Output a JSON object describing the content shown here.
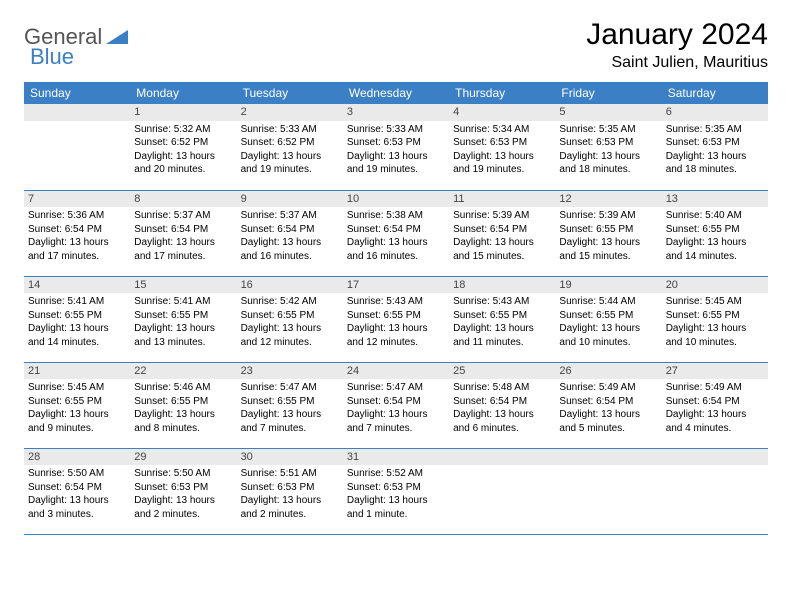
{
  "brand": {
    "part1": "General",
    "part2": "Blue"
  },
  "title": "January 2024",
  "location": "Saint Julien, Mauritius",
  "colors": {
    "header_bg": "#3b7fc4",
    "header_text": "#ffffff",
    "daynum_bg": "#eaeaea",
    "border": "#3b7fc4",
    "page_bg": "#ffffff",
    "text": "#000000",
    "logo_gray": "#555555",
    "logo_blue": "#3b7fc4"
  },
  "dayNames": [
    "Sunday",
    "Monday",
    "Tuesday",
    "Wednesday",
    "Thursday",
    "Friday",
    "Saturday"
  ],
  "weeks": [
    [
      {
        "n": "",
        "sr": "",
        "ss": "",
        "dl": ""
      },
      {
        "n": "1",
        "sr": "5:32 AM",
        "ss": "6:52 PM",
        "dl": "13 hours and 20 minutes."
      },
      {
        "n": "2",
        "sr": "5:33 AM",
        "ss": "6:52 PM",
        "dl": "13 hours and 19 minutes."
      },
      {
        "n": "3",
        "sr": "5:33 AM",
        "ss": "6:53 PM",
        "dl": "13 hours and 19 minutes."
      },
      {
        "n": "4",
        "sr": "5:34 AM",
        "ss": "6:53 PM",
        "dl": "13 hours and 19 minutes."
      },
      {
        "n": "5",
        "sr": "5:35 AM",
        "ss": "6:53 PM",
        "dl": "13 hours and 18 minutes."
      },
      {
        "n": "6",
        "sr": "5:35 AM",
        "ss": "6:53 PM",
        "dl": "13 hours and 18 minutes."
      }
    ],
    [
      {
        "n": "7",
        "sr": "5:36 AM",
        "ss": "6:54 PM",
        "dl": "13 hours and 17 minutes."
      },
      {
        "n": "8",
        "sr": "5:37 AM",
        "ss": "6:54 PM",
        "dl": "13 hours and 17 minutes."
      },
      {
        "n": "9",
        "sr": "5:37 AM",
        "ss": "6:54 PM",
        "dl": "13 hours and 16 minutes."
      },
      {
        "n": "10",
        "sr": "5:38 AM",
        "ss": "6:54 PM",
        "dl": "13 hours and 16 minutes."
      },
      {
        "n": "11",
        "sr": "5:39 AM",
        "ss": "6:54 PM",
        "dl": "13 hours and 15 minutes."
      },
      {
        "n": "12",
        "sr": "5:39 AM",
        "ss": "6:55 PM",
        "dl": "13 hours and 15 minutes."
      },
      {
        "n": "13",
        "sr": "5:40 AM",
        "ss": "6:55 PM",
        "dl": "13 hours and 14 minutes."
      }
    ],
    [
      {
        "n": "14",
        "sr": "5:41 AM",
        "ss": "6:55 PM",
        "dl": "13 hours and 14 minutes."
      },
      {
        "n": "15",
        "sr": "5:41 AM",
        "ss": "6:55 PM",
        "dl": "13 hours and 13 minutes."
      },
      {
        "n": "16",
        "sr": "5:42 AM",
        "ss": "6:55 PM",
        "dl": "13 hours and 12 minutes."
      },
      {
        "n": "17",
        "sr": "5:43 AM",
        "ss": "6:55 PM",
        "dl": "13 hours and 12 minutes."
      },
      {
        "n": "18",
        "sr": "5:43 AM",
        "ss": "6:55 PM",
        "dl": "13 hours and 11 minutes."
      },
      {
        "n": "19",
        "sr": "5:44 AM",
        "ss": "6:55 PM",
        "dl": "13 hours and 10 minutes."
      },
      {
        "n": "20",
        "sr": "5:45 AM",
        "ss": "6:55 PM",
        "dl": "13 hours and 10 minutes."
      }
    ],
    [
      {
        "n": "21",
        "sr": "5:45 AM",
        "ss": "6:55 PM",
        "dl": "13 hours and 9 minutes."
      },
      {
        "n": "22",
        "sr": "5:46 AM",
        "ss": "6:55 PM",
        "dl": "13 hours and 8 minutes."
      },
      {
        "n": "23",
        "sr": "5:47 AM",
        "ss": "6:55 PM",
        "dl": "13 hours and 7 minutes."
      },
      {
        "n": "24",
        "sr": "5:47 AM",
        "ss": "6:54 PM",
        "dl": "13 hours and 7 minutes."
      },
      {
        "n": "25",
        "sr": "5:48 AM",
        "ss": "6:54 PM",
        "dl": "13 hours and 6 minutes."
      },
      {
        "n": "26",
        "sr": "5:49 AM",
        "ss": "6:54 PM",
        "dl": "13 hours and 5 minutes."
      },
      {
        "n": "27",
        "sr": "5:49 AM",
        "ss": "6:54 PM",
        "dl": "13 hours and 4 minutes."
      }
    ],
    [
      {
        "n": "28",
        "sr": "5:50 AM",
        "ss": "6:54 PM",
        "dl": "13 hours and 3 minutes."
      },
      {
        "n": "29",
        "sr": "5:50 AM",
        "ss": "6:53 PM",
        "dl": "13 hours and 2 minutes."
      },
      {
        "n": "30",
        "sr": "5:51 AM",
        "ss": "6:53 PM",
        "dl": "13 hours and 2 minutes."
      },
      {
        "n": "31",
        "sr": "5:52 AM",
        "ss": "6:53 PM",
        "dl": "13 hours and 1 minute."
      },
      {
        "n": "",
        "sr": "",
        "ss": "",
        "dl": ""
      },
      {
        "n": "",
        "sr": "",
        "ss": "",
        "dl": ""
      },
      {
        "n": "",
        "sr": "",
        "ss": "",
        "dl": ""
      }
    ]
  ],
  "labels": {
    "sunrise": "Sunrise:",
    "sunset": "Sunset:",
    "daylight": "Daylight:"
  }
}
